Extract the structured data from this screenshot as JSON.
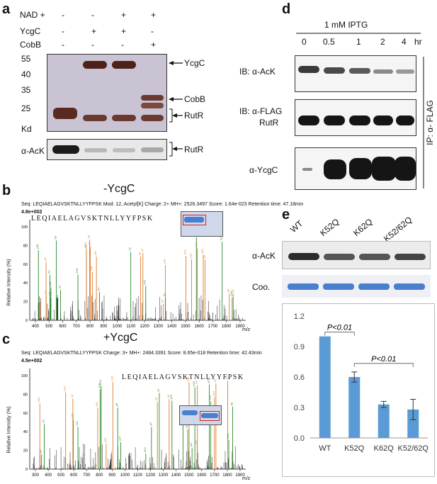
{
  "panel_a": {
    "label": "a",
    "row_labels": [
      "NAD +",
      "YcgC",
      "CobB"
    ],
    "signs": [
      [
        "-",
        "-",
        "+",
        "+"
      ],
      [
        "-",
        "+",
        "+",
        "-"
      ],
      [
        "-",
        "-",
        "-",
        "+"
      ]
    ],
    "mw_markers": [
      "55",
      "40",
      "35",
      "25"
    ],
    "kd": "Kd",
    "band_labels": {
      "ycgc": "YcgC",
      "cobb": "CobB",
      "rutr1": "RutR",
      "rutr2": "RutR"
    },
    "blot_label": "α-AcK"
  },
  "panel_b": {
    "label": "b",
    "title": "-YcgC",
    "header": "Seq: LEQIAELAGVSKTNLLYYFPSK   Mod: 12, Acetyl[K]   Charge: 2+   MH+: 2526.3497   Score: 1.64e-023   Retention time: 47.18min",
    "intensity": "4.8e+002",
    "peptide": "LEQIAELAGVSKTNLLYYFPSK",
    "ylabel": "Relative Intensity (%)",
    "xlabel": "m/z",
    "ticks_x": [
      "400",
      "500",
      "600",
      "700",
      "800",
      "900",
      "1000",
      "1100",
      "1200",
      "1300",
      "1400",
      "1500",
      "1600",
      "1700",
      "1800",
      "1900"
    ]
  },
  "panel_c": {
    "label": "c",
    "title": "+YcgC",
    "header": "Seq: LEQIAELAGVSKTNLLYYFPSK   Charge: 3+   MH+: 2484.3391   Score: 8.65e-018   Retention time: 42.43min",
    "intensity": "4.5e+002",
    "peptide": "LEQIAELAGVSKTNLLYYFPSK",
    "ylabel": "Relative Intensity (%)",
    "xlabel": "m/z",
    "ticks_x": [
      "300",
      "400",
      "500",
      "600",
      "700",
      "800",
      "900",
      "1000",
      "1100",
      "1200",
      "1300",
      "1400",
      "1500",
      "1600",
      "1700",
      "1800",
      "1900"
    ]
  },
  "panel_d": {
    "label": "d",
    "title": "1 mM IPTG",
    "timepoints": [
      "0",
      "0.5",
      "1",
      "2",
      "4"
    ],
    "time_unit": "hr",
    "rows": [
      {
        "label": "IB: α-AcK"
      },
      {
        "label": "IB: α-FLAG",
        "label2": "RutR"
      },
      {
        "label": "α-YcgC"
      }
    ],
    "ip_label": "IP: α- FLAG"
  },
  "panel_e": {
    "label": "e",
    "lanes": [
      "WT",
      "K52Q",
      "K62Q",
      "K52/62Q"
    ],
    "blot_rows": [
      "α-AcK",
      "Coo."
    ],
    "chart_data": {
      "type": "bar",
      "categories": [
        "WT",
        "K52Q",
        "K62Q",
        "K52/62Q"
      ],
      "values": [
        1.0,
        0.6,
        0.33,
        0.28
      ],
      "errors": [
        0.0,
        0.05,
        0.03,
        0.1
      ],
      "yticks": [
        "0.0",
        "0.3",
        "0.6",
        "0.9",
        "1.2"
      ],
      "ylim": [
        0,
        1.2
      ],
      "annotations": [
        "P<0.01",
        "P<0.01"
      ],
      "color": "#5b9bd5"
    }
  }
}
